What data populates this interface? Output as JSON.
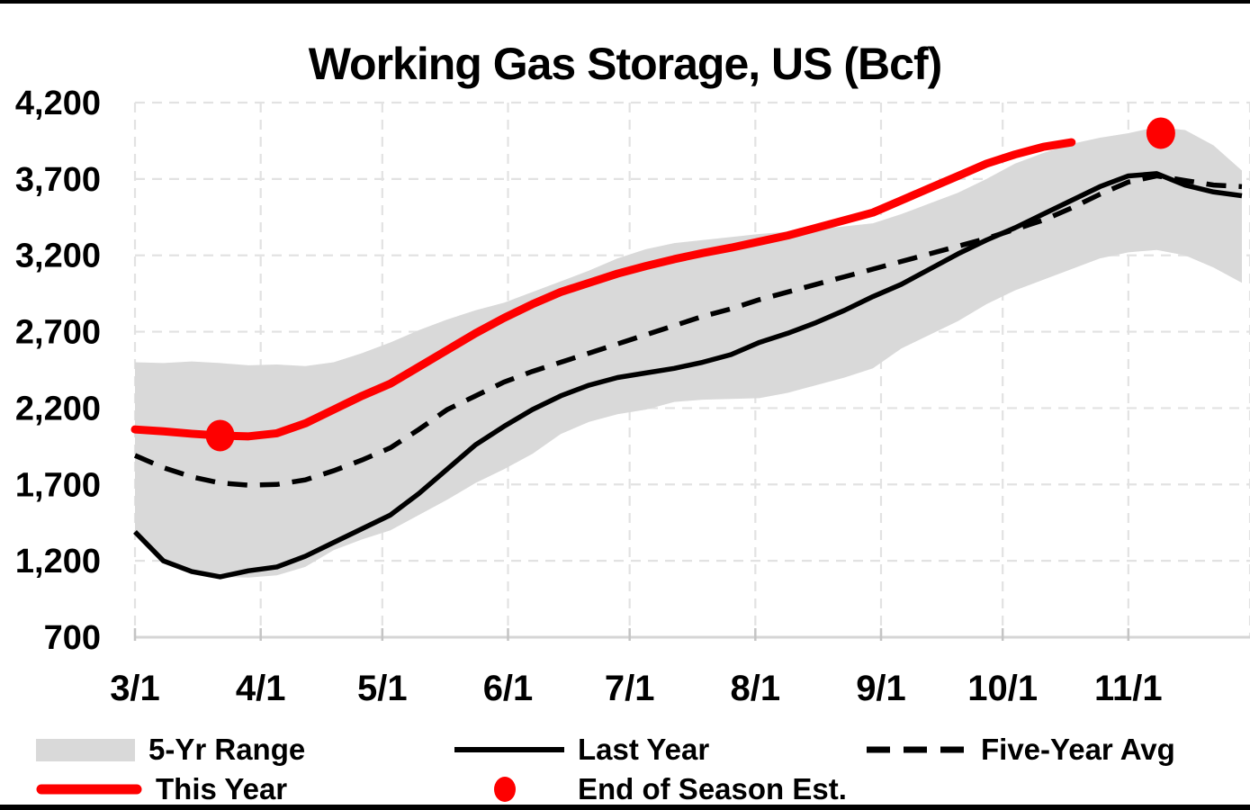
{
  "title": "Working Gas Storage, US (Bcf)",
  "colors": {
    "this_year_red": "#FE0000",
    "range_band_gray": "#D9D9D9",
    "line_black": "#000000",
    "gridline_gray": "#E2E2E2",
    "axis_line_gray": "#D5D5D5",
    "tick_gray": "#C4C4C4",
    "background": "#FFFFFF",
    "frame_border": "#000000"
  },
  "legend": {
    "items": [
      {
        "label": "5-Yr Range",
        "swatch": "gray-band-swatch"
      },
      {
        "label": "Last Year",
        "swatch": "black-line-swatch"
      },
      {
        "label": "Five-Year Avg",
        "swatch": "black-dashed-swatch"
      },
      {
        "label": "This Year",
        "swatch": "red-line-swatch"
      },
      {
        "label": "End of Season Est.",
        "swatch": "red-dot-swatch"
      }
    ]
  },
  "chart_data": {
    "type": "line",
    "title": "Working Gas Storage, US (Bcf)",
    "xlabel": "",
    "ylabel": "",
    "y_axis": {
      "min": 700,
      "max": 4200,
      "step": 500,
      "tick_labels": [
        "700",
        "1,200",
        "1,700",
        "2,200",
        "2,700",
        "3,200",
        "3,700",
        "4,200"
      ]
    },
    "x_axis": {
      "start": "3/1",
      "end": "12/1",
      "domain_days": 275,
      "tick_labels": [
        "3/1",
        "4/1",
        "5/1",
        "6/1",
        "7/1",
        "8/1",
        "9/1",
        "10/1",
        "11/1"
      ],
      "tick_days": [
        0,
        31,
        61,
        92,
        122,
        153,
        184,
        214,
        245
      ],
      "edge_gridline_day": 275
    },
    "grid": true,
    "legend_position": "bottom",
    "x_days": [
      0,
      7,
      14,
      21,
      28,
      35,
      42,
      49,
      56,
      63,
      70,
      77,
      84,
      91,
      98,
      105,
      112,
      119,
      126,
      133,
      140,
      147,
      154,
      161,
      168,
      175,
      182,
      189,
      196,
      203,
      210,
      217,
      224,
      231,
      238,
      245,
      252,
      259,
      266,
      273
    ],
    "series": [
      {
        "name": "5-Yr Range",
        "type": "band",
        "top": [
          2500,
          2495,
          2505,
          2495,
          2480,
          2485,
          2475,
          2500,
          2560,
          2630,
          2710,
          2780,
          2840,
          2890,
          2960,
          3030,
          3100,
          3180,
          3240,
          3280,
          3300,
          3320,
          3340,
          3355,
          3370,
          3390,
          3410,
          3470,
          3540,
          3610,
          3700,
          3800,
          3870,
          3930,
          3970,
          4000,
          4040,
          4020,
          3920,
          3755
        ],
        "bottom": [
          1375,
          1200,
          1130,
          1095,
          1090,
          1105,
          1160,
          1270,
          1340,
          1400,
          1500,
          1600,
          1710,
          1800,
          1900,
          2030,
          2110,
          2160,
          2190,
          2240,
          2255,
          2260,
          2265,
          2300,
          2350,
          2400,
          2460,
          2590,
          2680,
          2770,
          2880,
          2970,
          3040,
          3110,
          3180,
          3220,
          3235,
          3200,
          3120,
          3020
        ]
      },
      {
        "name": "Last Year",
        "type": "line",
        "style": "solid",
        "values": [
          1390,
          1200,
          1130,
          1095,
          1135,
          1160,
          1230,
          1320,
          1410,
          1500,
          1640,
          1800,
          1960,
          2080,
          2190,
          2280,
          2350,
          2400,
          2430,
          2460,
          2500,
          2550,
          2630,
          2690,
          2760,
          2840,
          2930,
          3010,
          3110,
          3210,
          3300,
          3380,
          3470,
          3560,
          3650,
          3720,
          3735,
          3660,
          3615,
          3590
        ]
      },
      {
        "name": "Five-Year Avg",
        "type": "line",
        "style": "dashed",
        "values": [
          1890,
          1810,
          1750,
          1710,
          1695,
          1700,
          1730,
          1790,
          1860,
          1940,
          2060,
          2190,
          2280,
          2370,
          2440,
          2500,
          2560,
          2620,
          2680,
          2740,
          2800,
          2850,
          2910,
          2960,
          3010,
          3060,
          3110,
          3160,
          3210,
          3260,
          3310,
          3370,
          3430,
          3510,
          3600,
          3680,
          3720,
          3690,
          3660,
          3650
        ]
      },
      {
        "name": "This Year",
        "type": "line",
        "style": "thick-red",
        "values": [
          2060,
          2048,
          2032,
          2020,
          2015,
          2035,
          2100,
          2190,
          2280,
          2360,
          2470,
          2580,
          2690,
          2790,
          2880,
          2960,
          3020,
          3080,
          3130,
          3175,
          3215,
          3250,
          3290,
          3330,
          3380,
          3430,
          3480,
          3560,
          3640,
          3720,
          3800,
          3860,
          3910,
          3940
        ]
      },
      {
        "name": "End of Season Est.",
        "type": "points",
        "points": [
          {
            "day": 21,
            "value": 2020
          },
          {
            "day": 253,
            "value": 4000
          }
        ]
      }
    ]
  }
}
